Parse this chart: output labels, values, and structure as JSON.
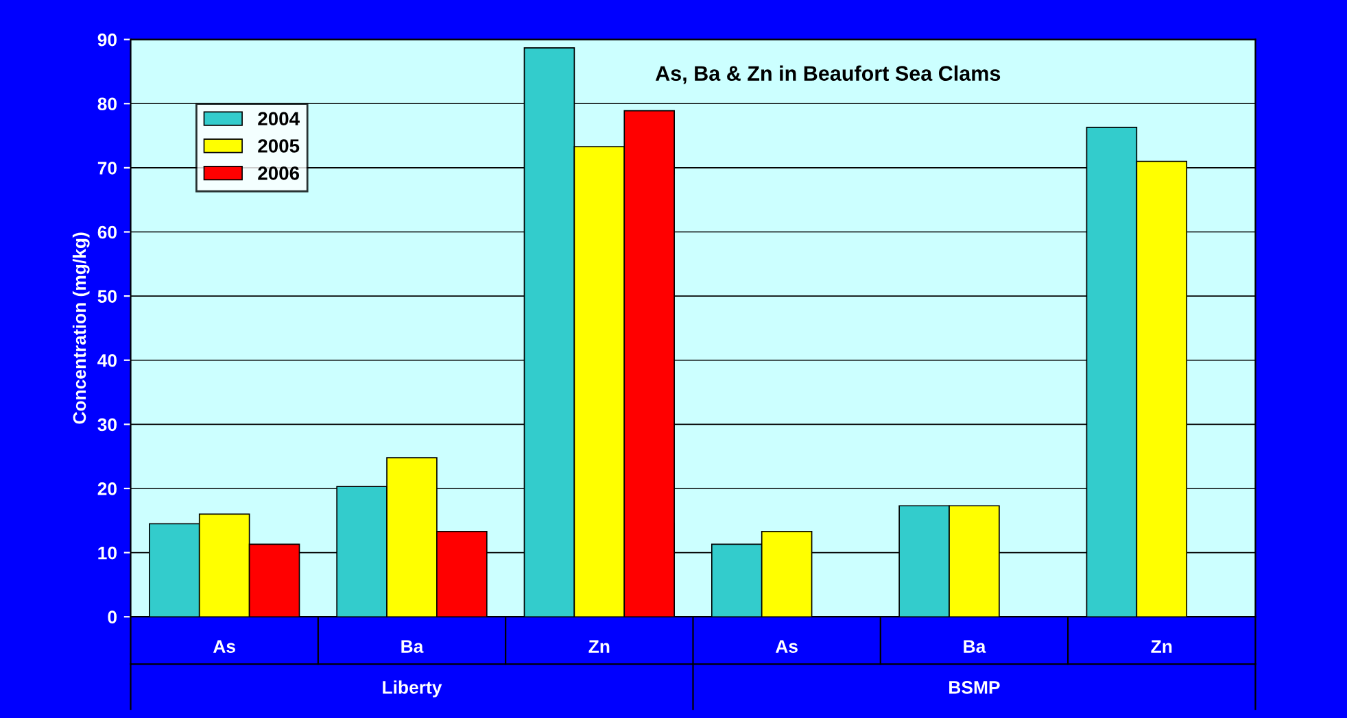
{
  "chart_data": {
    "type": "bar",
    "title": "As, Ba & Zn in Beaufort Sea Clams",
    "ylabel": "Concentration (mg/kg)",
    "categories": [
      "As",
      "Ba",
      "Zn",
      "As",
      "Ba",
      "Zn"
    ],
    "annotations": [
      "Liberty",
      "BSMP"
    ],
    "series": [
      {
        "name": "2004",
        "color": "#33cccc",
        "values": [
          14.5,
          20.3,
          88.7,
          11.3,
          17.3,
          76.3
        ]
      },
      {
        "name": "2005",
        "color": "#ffff00",
        "values": [
          16.0,
          24.8,
          73.3,
          13.3,
          17.3,
          71.0
        ]
      },
      {
        "name": "2006",
        "color": "#ff0000",
        "values": [
          11.3,
          13.3,
          78.9,
          null,
          null,
          null
        ]
      }
    ],
    "ylim": [
      0,
      90
    ],
    "yticks": [
      0,
      10,
      20,
      30,
      40,
      50,
      60,
      70,
      80,
      90
    ],
    "grid": "y",
    "legend": "top left"
  }
}
